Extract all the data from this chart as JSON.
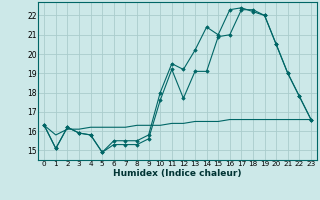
{
  "xlabel": "Humidex (Indice chaleur)",
  "bg_color": "#cce8e8",
  "grid_color": "#aacccc",
  "line_color": "#006666",
  "xlim": [
    -0.5,
    23.5
  ],
  "ylim": [
    14.5,
    22.7
  ],
  "yticks": [
    15,
    16,
    17,
    18,
    19,
    20,
    21,
    22
  ],
  "xticks": [
    0,
    1,
    2,
    3,
    4,
    5,
    6,
    7,
    8,
    9,
    10,
    11,
    12,
    13,
    14,
    15,
    16,
    17,
    18,
    19,
    20,
    21,
    22,
    23
  ],
  "line1_x": [
    0,
    1,
    2,
    3,
    4,
    5,
    6,
    7,
    8,
    9,
    10,
    11,
    12,
    13,
    14,
    15,
    16,
    17,
    18,
    19,
    20,
    21,
    22,
    23
  ],
  "line1_y": [
    16.3,
    15.1,
    16.2,
    15.9,
    15.8,
    14.9,
    15.3,
    15.3,
    15.3,
    15.6,
    17.6,
    19.2,
    17.7,
    19.1,
    19.1,
    20.9,
    21.0,
    22.3,
    22.3,
    22.0,
    20.5,
    19.0,
    17.8,
    16.6
  ],
  "line2_x": [
    0,
    1,
    2,
    3,
    4,
    5,
    6,
    7,
    8,
    9,
    10,
    11,
    12,
    13,
    14,
    15,
    16,
    17,
    18,
    19,
    20,
    21,
    22,
    23
  ],
  "line2_y": [
    16.3,
    15.1,
    16.2,
    15.9,
    15.8,
    14.9,
    15.5,
    15.5,
    15.5,
    15.8,
    18.0,
    19.5,
    19.2,
    20.2,
    21.4,
    21.0,
    22.3,
    22.4,
    22.2,
    22.0,
    20.5,
    19.0,
    17.8,
    16.6
  ],
  "line3_x": [
    0,
    1,
    2,
    3,
    4,
    5,
    6,
    7,
    8,
    9,
    10,
    11,
    12,
    13,
    14,
    15,
    16,
    17,
    18,
    19,
    20,
    21,
    22,
    23
  ],
  "line3_y": [
    16.3,
    15.8,
    16.1,
    16.1,
    16.2,
    16.2,
    16.2,
    16.2,
    16.3,
    16.3,
    16.3,
    16.4,
    16.4,
    16.5,
    16.5,
    16.5,
    16.6,
    16.6,
    16.6,
    16.6,
    16.6,
    16.6,
    16.6,
    16.6
  ],
  "xlabel_fontsize": 6.5,
  "tick_fontsize": 5.2
}
